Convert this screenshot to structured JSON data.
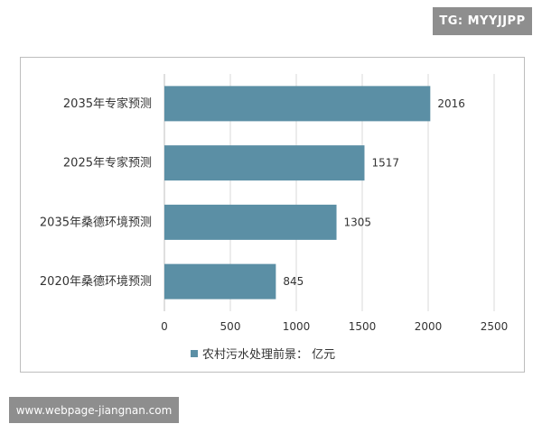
{
  "watermarks": {
    "top": "TG: MYYJJPP",
    "bottom": "www.webpage-jiangnan.com"
  },
  "chart_data": {
    "type": "bar",
    "orientation": "horizontal",
    "categories": [
      "2035年专家预测",
      "2025年专家预测",
      "2035年桑德环境预测",
      "2020年桑德环境预测"
    ],
    "series": [
      {
        "name": "农村污水处理前景： 亿元",
        "values": [
          2016,
          1517,
          1305,
          845
        ]
      }
    ],
    "xlim": [
      0,
      2500
    ],
    "xticks": [
      0,
      500,
      1000,
      1500,
      2000,
      2500
    ],
    "grid": true,
    "legend": "bottom",
    "colors": {
      "bar": "#5b8fa5",
      "grid": "#d9d9d9",
      "axis": "#bfbfbf"
    }
  }
}
